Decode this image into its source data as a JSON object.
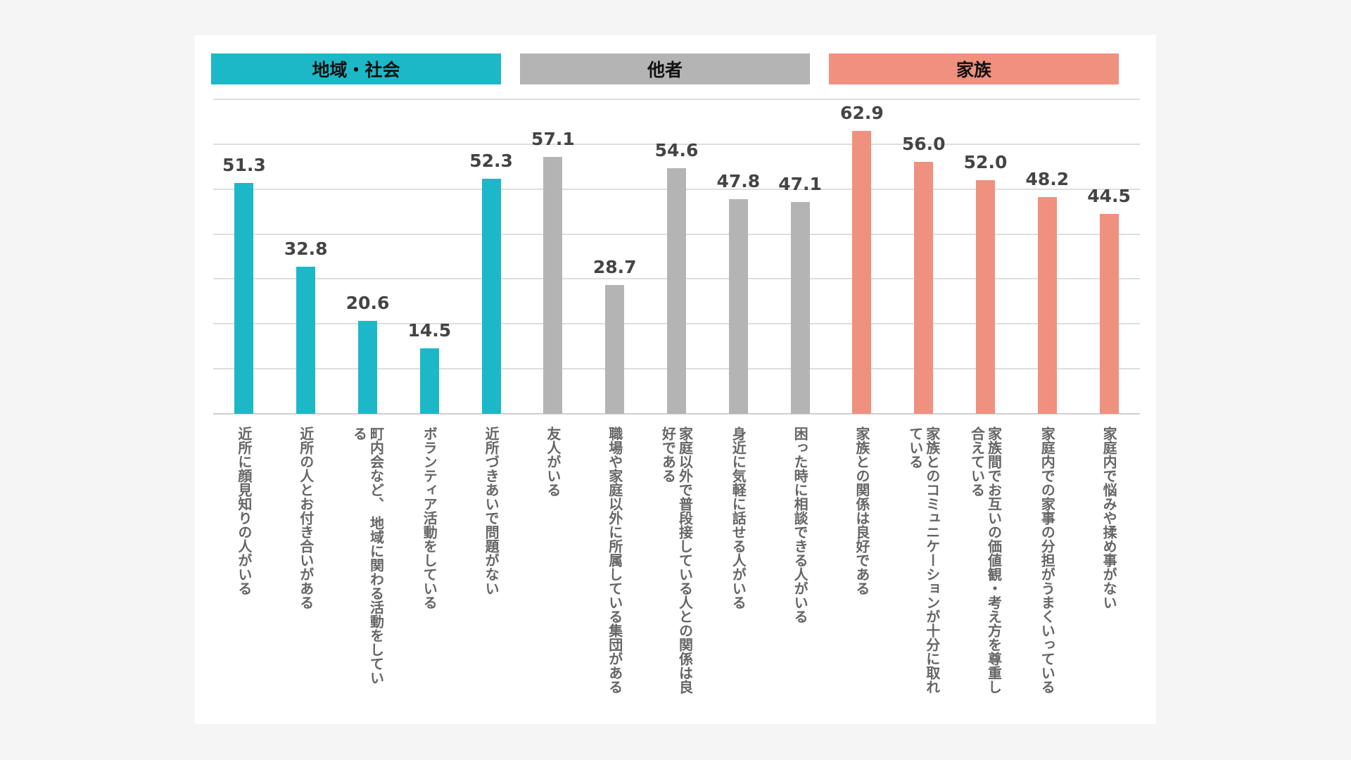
{
  "chart_data": {
    "type": "bar",
    "title": "",
    "xlabel": "",
    "ylabel": "",
    "ylim": [
      0,
      70
    ],
    "grid": true,
    "grid_step": 10,
    "groups": [
      {
        "name": "地域・社会",
        "color": "#1cb8c8",
        "start": 0,
        "end": 4
      },
      {
        "name": "他者",
        "color": "#b4b4b5",
        "start": 5,
        "end": 9
      },
      {
        "name": "家族",
        "color": "#f0907f",
        "start": 10,
        "end": 14
      }
    ],
    "categories": [
      "近所に顔見知りの人がいる",
      "近所の人とお付き合いがある",
      "町内会など、 地域に関わる活動をしている",
      "ボランティア活動をしている",
      "近所づきあいで問題がない",
      "友人がいる",
      "職場や家庭以外に所属している集団がある",
      "家庭以外で普段接している人との関係は良好である",
      "身近に気軽に話せる人がいる",
      "困った時に相談できる人がいる",
      "家族との関係は良好である",
      "家族とのコミュニケーションが十分に取れている",
      "家族間でお互いの価値観・考え方を尊重し合えている",
      "家庭内での家事の分担がうまくいっている",
      "家庭内で悩みや揉め事がない"
    ],
    "values": [
      51.3,
      32.8,
      20.6,
      14.5,
      52.3,
      57.1,
      28.7,
      54.6,
      47.8,
      47.1,
      62.9,
      56.0,
      52.0,
      48.2,
      44.5
    ],
    "value_labels": [
      "51.3",
      "32.8",
      "20.6",
      "14.5",
      "52.3",
      "57.1",
      "28.7",
      "54.6",
      "47.8",
      "47.1",
      "62.9",
      "56.0",
      "52.0",
      "48.2",
      "44.5"
    ]
  }
}
